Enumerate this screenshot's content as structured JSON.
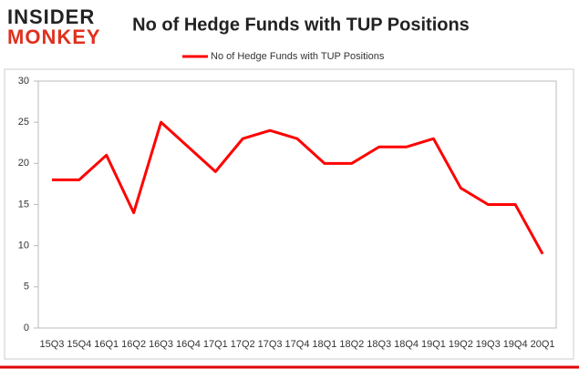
{
  "logo": {
    "line1": "INSIDER",
    "line2": "MONKEY"
  },
  "chart_data": {
    "type": "line",
    "title": "No of Hedge Funds with TUP Positions",
    "categories": [
      "15Q3",
      "15Q4",
      "16Q1",
      "16Q2",
      "16Q3",
      "16Q4",
      "17Q1",
      "17Q2",
      "17Q3",
      "17Q4",
      "18Q1",
      "18Q2",
      "18Q3",
      "18Q4",
      "19Q1",
      "19Q2",
      "19Q3",
      "19Q4",
      "20Q1"
    ],
    "series": [
      {
        "name": "No of Hedge Funds with TUP Positions",
        "color": "#ff0000",
        "values": [
          18,
          18,
          21,
          14,
          25,
          22,
          19,
          23,
          24,
          23,
          20,
          20,
          22,
          22,
          23,
          17,
          15,
          15,
          9
        ]
      }
    ],
    "ylim": [
      0,
      30
    ],
    "yticks": [
      0,
      5,
      10,
      15,
      20,
      25,
      30
    ],
    "grid": false,
    "legend": "top"
  }
}
